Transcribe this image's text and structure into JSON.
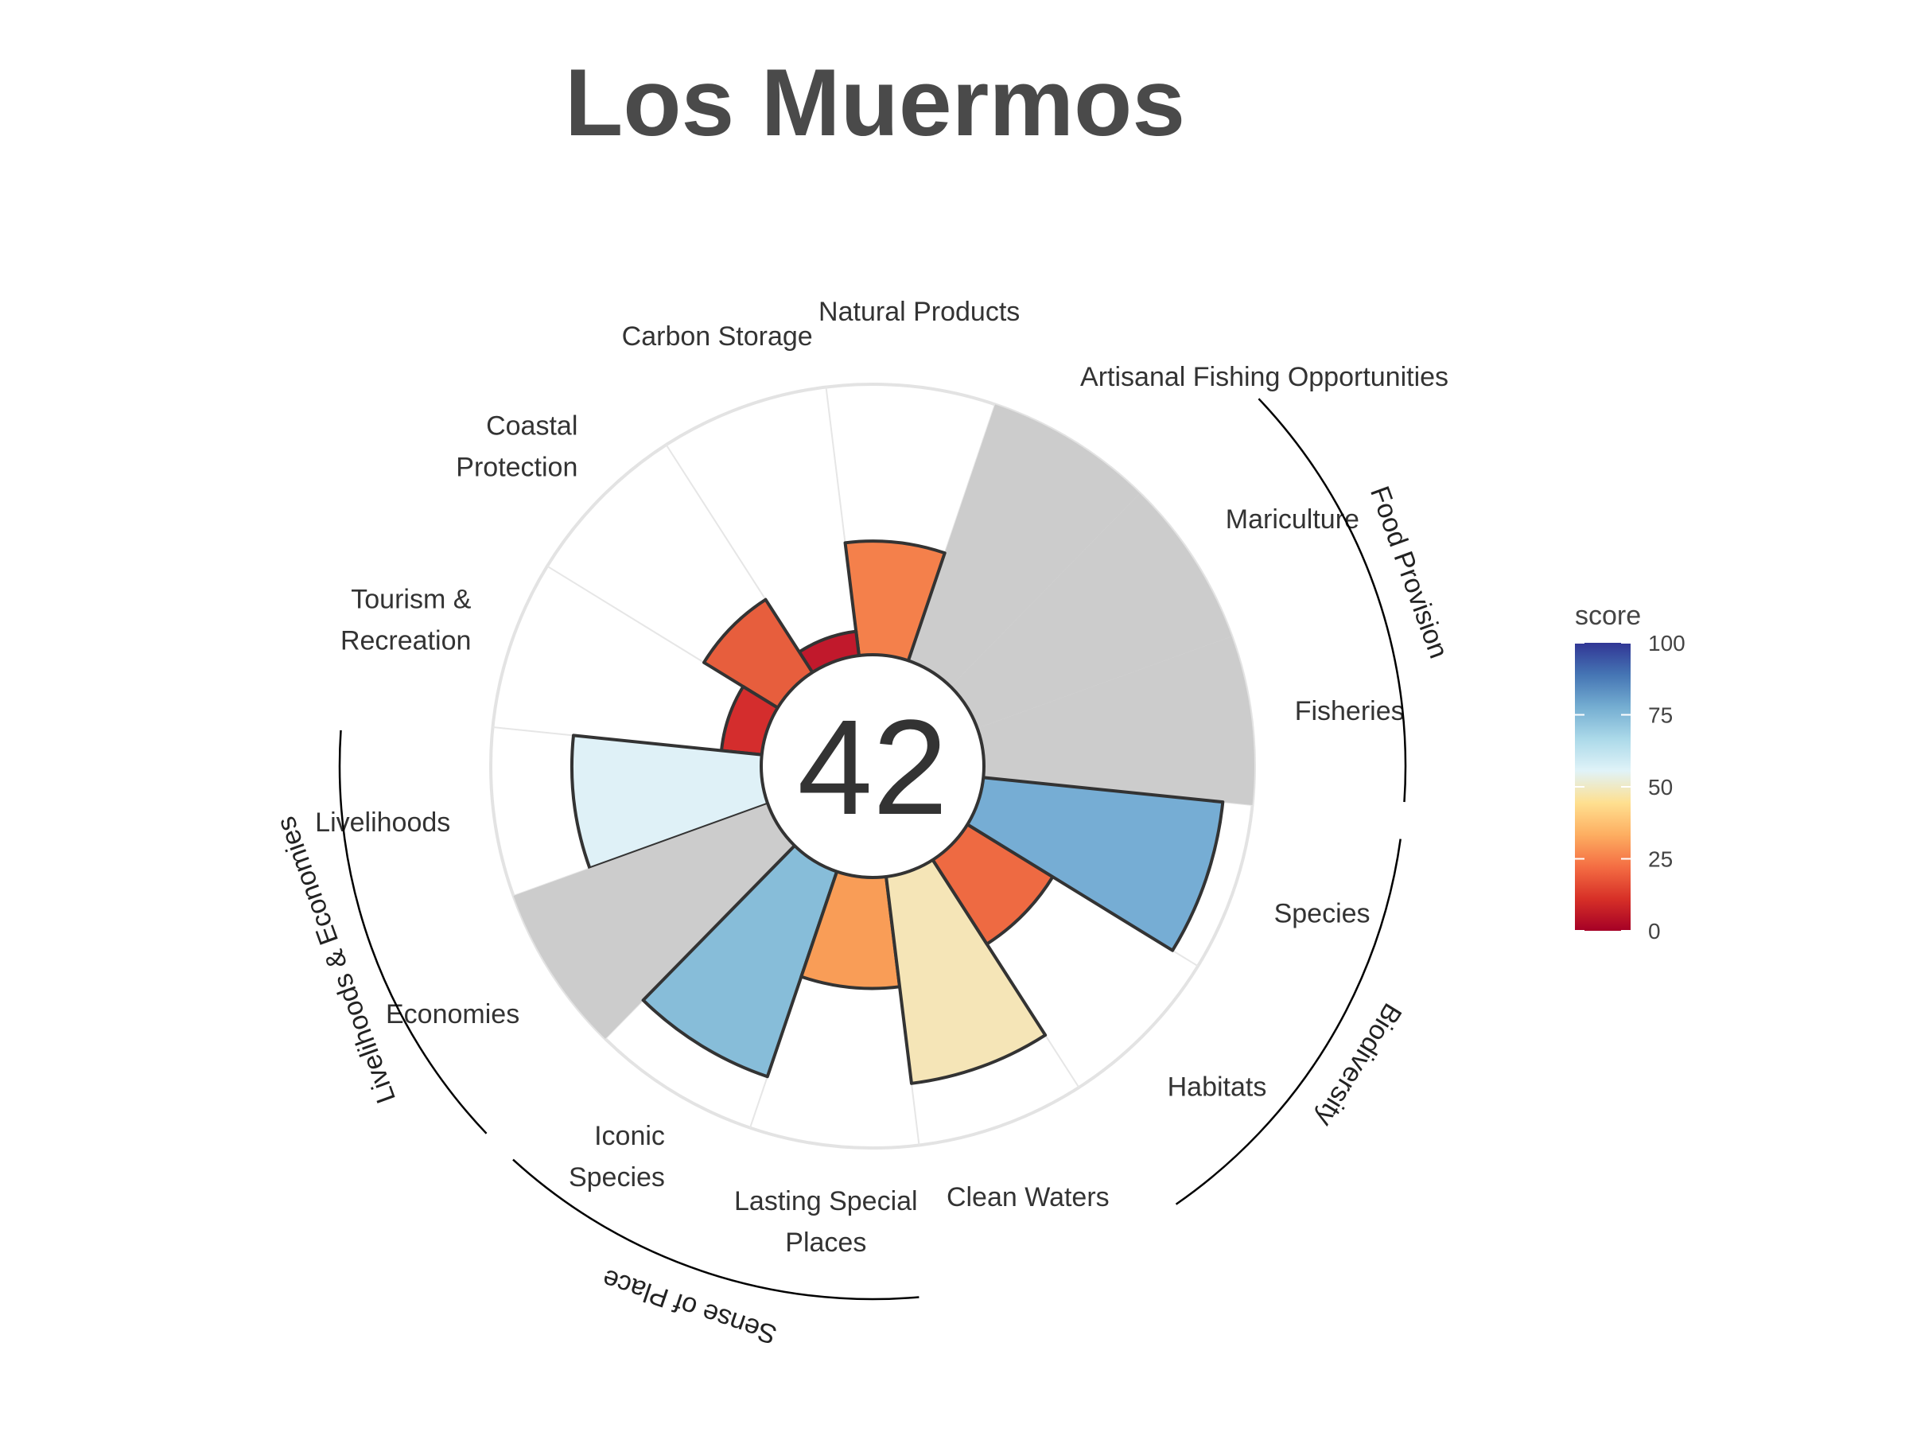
{
  "title": "Los Muermos",
  "chart_data": {
    "type": "polar-bar",
    "overall_score": "42",
    "max_score": 100,
    "goals": [
      {
        "name": "Fisheries",
        "label_lines": [
          "Fisheries"
        ],
        "score": null,
        "color": "#cccccc"
      },
      {
        "name": "Mariculture",
        "label_lines": [
          "Mariculture"
        ],
        "score": null,
        "color": "#cccccc"
      },
      {
        "name": "Artisanal Fishing Opportunities",
        "label_lines": [
          "Artisanal Fishing Opportunities"
        ],
        "score": null,
        "color": "#cccccc"
      },
      {
        "name": "Natural Products",
        "label_lines": [
          "Natural Products"
        ],
        "score": 42,
        "color": "#f4804b"
      },
      {
        "name": "Carbon Storage",
        "label_lines": [
          "Carbon Storage"
        ],
        "score": 9,
        "color": "#c1192c"
      },
      {
        "name": "Coastal Protection",
        "label_lines": [
          "Coastal",
          "Protection"
        ],
        "score": 32,
        "color": "#e75e3d"
      },
      {
        "name": "Tourism & Recreation",
        "label_lines": [
          "Tourism &",
          "Recreation"
        ],
        "score": 15,
        "color": "#d42d2d"
      },
      {
        "name": "Livelihoods",
        "label_lines": [
          "Livelihoods"
        ],
        "score": 70,
        "color": "#dff1f7"
      },
      {
        "name": "Economies",
        "label_lines": [
          "Economies"
        ],
        "score": null,
        "color": "#cccccc"
      },
      {
        "name": "Iconic Species",
        "label_lines": [
          "Iconic",
          "Species"
        ],
        "score": 80,
        "color": "#87bdd9"
      },
      {
        "name": "Lasting Special Places",
        "label_lines": [
          "Lasting Special",
          "Places"
        ],
        "score": 41,
        "color": "#f99d57"
      },
      {
        "name": "Clean Waters",
        "label_lines": [
          "Clean Waters"
        ],
        "score": 77,
        "color": "#f5e5b7"
      },
      {
        "name": "Habitats",
        "label_lines": [
          "Habitats"
        ],
        "score": 37,
        "color": "#ee6a42"
      },
      {
        "name": "Species",
        "label_lines": [
          "Species"
        ],
        "score": 89,
        "color": "#76add4"
      }
    ],
    "groups": [
      {
        "name": "Food Provision",
        "goals": [
          "Fisheries",
          "Mariculture"
        ]
      },
      {
        "name": "Biodiversity",
        "goals": [
          "Habitats",
          "Species"
        ]
      },
      {
        "name": "Sense of Place",
        "goals": [
          "Iconic Species",
          "Lasting Special Places"
        ]
      },
      {
        "name": "Livelihoods & Economies",
        "goals": [
          "Livelihoods",
          "Economies"
        ]
      }
    ],
    "legend": {
      "title": "score",
      "placement": "right",
      "ticks": [
        "0",
        "25",
        "50",
        "75",
        "100"
      ],
      "colors": [
        "#a50026",
        "#d73027",
        "#f46d43",
        "#fdae61",
        "#fee090",
        "#e0f3f8",
        "#abd9e9",
        "#74add1",
        "#4575b4",
        "#313695"
      ]
    }
  }
}
